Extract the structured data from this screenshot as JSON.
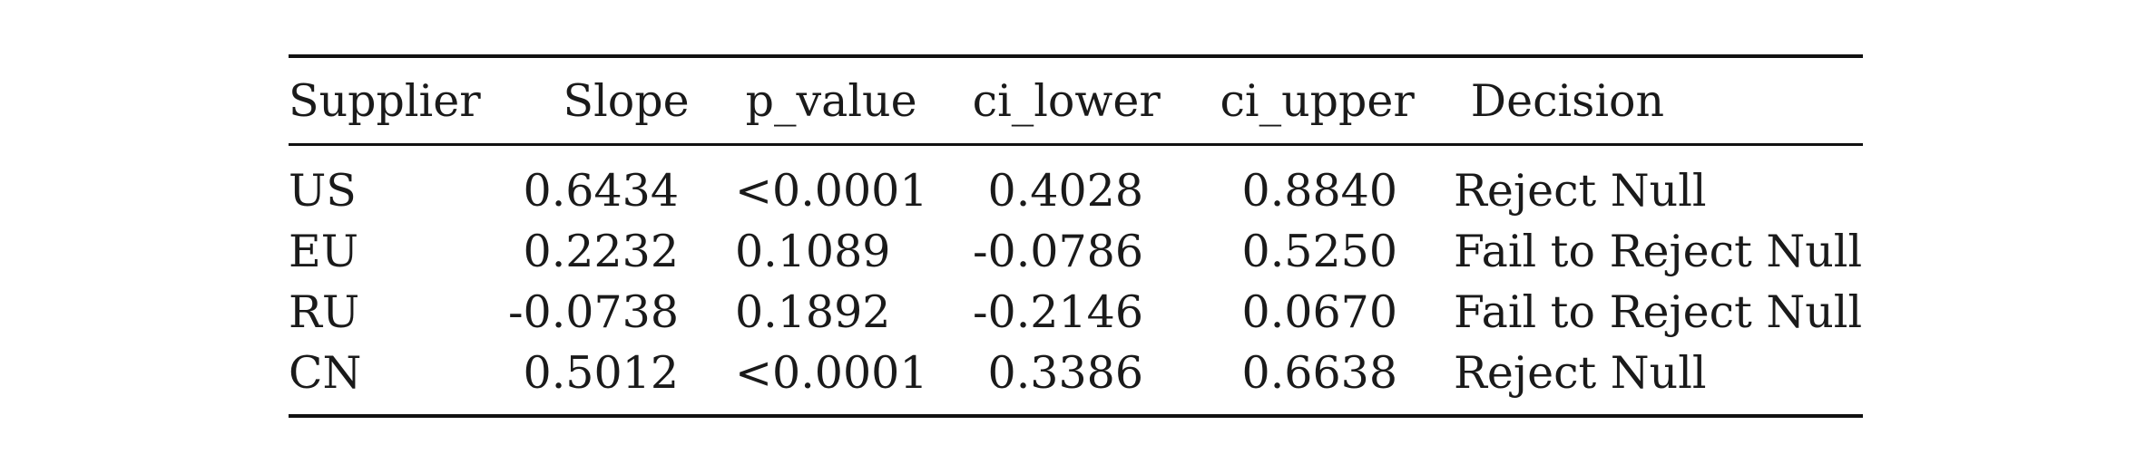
{
  "table": {
    "columns": [
      "Supplier",
      "Slope",
      "p_value",
      "ci_lower",
      "ci_upper",
      "Decision"
    ],
    "rows": [
      [
        "US",
        "0.6434",
        "<0.0001",
        "0.4028",
        "0.8840",
        "Reject Null"
      ],
      [
        "EU",
        "0.2232",
        "0.1089",
        "-0.0786",
        "0.5250",
        "Fail to Reject Null"
      ],
      [
        "RU",
        "-0.0738",
        "0.1892",
        "-0.2146",
        "0.0670",
        "Fail to Reject Null"
      ],
      [
        "CN",
        "0.5012",
        "<0.0001",
        "0.3386",
        "0.6638",
        "Reject Null"
      ]
    ]
  }
}
